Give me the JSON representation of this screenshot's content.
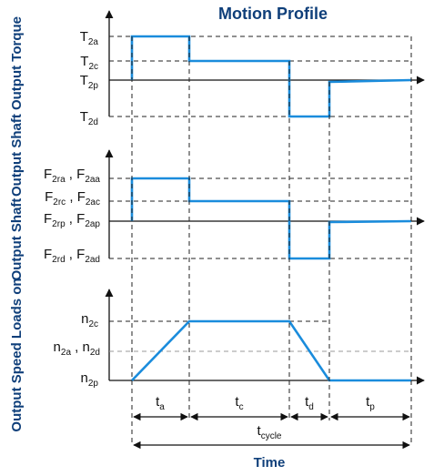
{
  "title": "Motion Profile",
  "side_labels": {
    "torque": "Output Shaft Output Torque",
    "loads": "Output Shaft",
    "speed": "Output Speed Loads on"
  },
  "x_axis_label": "Time",
  "colors": {
    "profile": "#1a8cdc",
    "axis": "#111111",
    "dashed": "#222222",
    "title": "#0f3f7a"
  },
  "torque_panel": {
    "labels": [
      {
        "text": "T",
        "sub": "2a"
      },
      {
        "text": "T",
        "sub": "2c"
      },
      {
        "text": "T",
        "sub": "2p"
      },
      {
        "text": "T",
        "sub": "2d"
      }
    ]
  },
  "load_panel": {
    "labels": [
      {
        "text": "F",
        "sub": "2ra",
        "sep": " , ",
        "text2": "F",
        "sub2": "2aa"
      },
      {
        "text": "F",
        "sub": "2rc",
        "sep": " , ",
        "text2": "F",
        "sub2": "2ac"
      },
      {
        "text": "F",
        "sub": "2rp",
        "sep": " , ",
        "text2": "F",
        "sub2": "2ap"
      },
      {
        "text": "F",
        "sub": "2rd",
        "sep": " , ",
        "text2": "F",
        "sub2": "2ad"
      }
    ]
  },
  "speed_panel": {
    "labels": [
      {
        "text": "n",
        "sub": "2c"
      },
      {
        "text": "n",
        "sub": "2a",
        "sep": " , ",
        "text2": "n",
        "sub2": "2d"
      },
      {
        "text": "n",
        "sub": "2p"
      }
    ]
  },
  "phases": [
    {
      "text": "t",
      "sub": "a"
    },
    {
      "text": "t",
      "sub": "c"
    },
    {
      "text": "t",
      "sub": "d"
    },
    {
      "text": "t",
      "sub": "p"
    }
  ],
  "cycle": {
    "text": "t",
    "sub": "cycle"
  }
}
